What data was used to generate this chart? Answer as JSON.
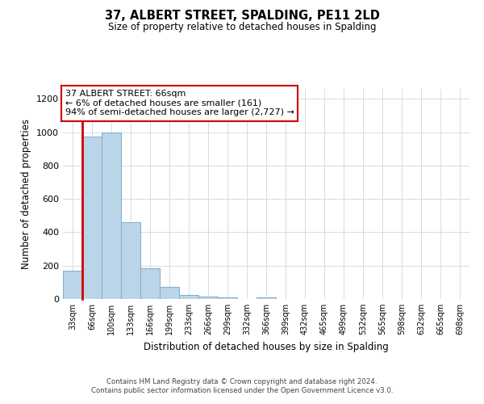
{
  "title": "37, ALBERT STREET, SPALDING, PE11 2LD",
  "subtitle": "Size of property relative to detached houses in Spalding",
  "xlabel": "Distribution of detached houses by size in Spalding",
  "ylabel": "Number of detached properties",
  "bin_labels": [
    "33sqm",
    "66sqm",
    "100sqm",
    "133sqm",
    "166sqm",
    "199sqm",
    "233sqm",
    "266sqm",
    "299sqm",
    "332sqm",
    "366sqm",
    "399sqm",
    "432sqm",
    "465sqm",
    "499sqm",
    "532sqm",
    "565sqm",
    "598sqm",
    "632sqm",
    "665sqm",
    "698sqm"
  ],
  "bar_heights": [
    170,
    975,
    1000,
    460,
    185,
    75,
    25,
    15,
    10,
    0,
    10,
    0,
    0,
    0,
    0,
    0,
    0,
    0,
    0,
    0,
    0
  ],
  "bar_color": "#bad4e8",
  "bar_edge_color": "#7aaecf",
  "highlight_bar_index": 1,
  "highlight_color": "#cc0000",
  "ylim": [
    0,
    1260
  ],
  "yticks": [
    0,
    200,
    400,
    600,
    800,
    1000,
    1200
  ],
  "annotation_title": "37 ALBERT STREET: 66sqm",
  "annotation_line1": "← 6% of detached houses are smaller (161)",
  "annotation_line2": "94% of semi-detached houses are larger (2,727) →",
  "annotation_box_color": "#ffffff",
  "annotation_box_edge_color": "#cc0000",
  "footer_line1": "Contains HM Land Registry data © Crown copyright and database right 2024.",
  "footer_line2": "Contains public sector information licensed under the Open Government Licence v3.0.",
  "background_color": "#ffffff",
  "grid_color": "#d0dce8"
}
